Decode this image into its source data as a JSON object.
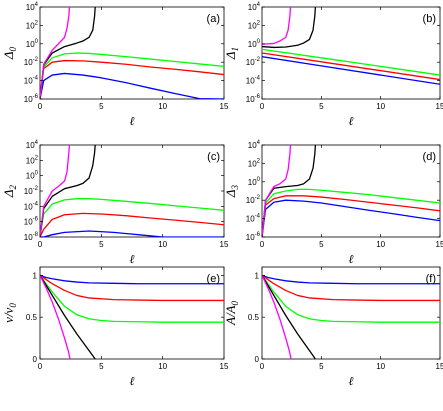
{
  "figure": {
    "xlabel": "ℓ",
    "colors": {
      "blue": "#0000ff",
      "red": "#ff0000",
      "green": "#00ff00",
      "black": "#000000",
      "magenta": "#ff00ff"
    }
  },
  "chart_data": [
    {
      "id": "a",
      "type": "line",
      "panel_label": "(a)",
      "ylabel": "Δ0",
      "ylabel_main": "Δ",
      "ylabel_sub": "0",
      "yscale": "log",
      "xlim": [
        0,
        15
      ],
      "ylim": [
        1e-06,
        10000.0
      ],
      "xticks": [
        0,
        5,
        10,
        15
      ],
      "xtick_labels": [
        "0",
        "5",
        "10",
        "15"
      ],
      "ytick_exponents": [
        -6,
        -4,
        -2,
        0,
        2,
        4
      ],
      "series": [
        {
          "color": "#0000ff",
          "x": [
            0,
            0.3,
            1,
            2,
            3.5,
            5,
            7,
            9,
            11,
            13,
            15
          ],
          "y": [
            1e-06,
            0.0001,
            0.0004,
            0.0006,
            0.0004,
            0.0002,
            6e-05,
            1.5e-05,
            4e-06,
            1.1e-06,
            3e-07
          ]
        },
        {
          "color": "#ff0000",
          "x": [
            0,
            0.3,
            1,
            2,
            3.5,
            5,
            7,
            9,
            11,
            13,
            15
          ],
          "y": [
            1e-06,
            0.002,
            0.01,
            0.015,
            0.014,
            0.01,
            0.006,
            0.003,
            0.0017,
            0.0009,
            0.00045
          ]
        },
        {
          "color": "#00ff00",
          "x": [
            0,
            0.3,
            1,
            2,
            3,
            4,
            5,
            7,
            9,
            11,
            13,
            15
          ],
          "y": [
            1e-06,
            0.003,
            0.03,
            0.08,
            0.1,
            0.09,
            0.07,
            0.04,
            0.022,
            0.012,
            0.0065,
            0.0035
          ]
        },
        {
          "color": "#000000",
          "x": [
            0,
            0.3,
            1,
            2,
            3,
            3.5,
            4,
            4.3,
            4.45,
            4.5
          ],
          "y": [
            1e-06,
            0.005,
            0.1,
            0.5,
            1.2,
            2,
            5,
            30,
            1000,
            10000
          ]
        },
        {
          "color": "#ff00ff",
          "x": [
            0,
            0.3,
            1,
            1.5,
            2,
            2.2,
            2.35,
            2.4
          ],
          "y": [
            1e-06,
            0.006,
            0.2,
            1,
            5,
            50,
            1000,
            10000
          ]
        }
      ]
    },
    {
      "id": "b",
      "type": "line",
      "panel_label": "(b)",
      "ylabel": "Δ1",
      "ylabel_main": "Δ",
      "ylabel_sub": "1",
      "yscale": "log",
      "xlim": [
        0,
        15
      ],
      "ylim": [
        1e-06,
        10000.0
      ],
      "xticks": [
        0,
        5,
        10,
        15
      ],
      "xtick_labels": [
        "0",
        "5",
        "10",
        "15"
      ],
      "ytick_exponents": [
        -6,
        -4,
        -2,
        0,
        2,
        4
      ],
      "series": [
        {
          "color": "#0000ff",
          "x": [
            0,
            5,
            10,
            15
          ],
          "y": [
            0.04,
            0.004,
            0.0004,
            4e-05
          ]
        },
        {
          "color": "#ff0000",
          "x": [
            0,
            5,
            10,
            15
          ],
          "y": [
            0.1,
            0.011,
            0.0012,
            0.00013
          ]
        },
        {
          "color": "#00ff00",
          "x": [
            0,
            5,
            10,
            15
          ],
          "y": [
            0.25,
            0.03,
            0.0035,
            0.0004
          ]
        },
        {
          "color": "#000000",
          "x": [
            0,
            1,
            2,
            3,
            3.5,
            4,
            4.3,
            4.45,
            4.5
          ],
          "y": [
            0.5,
            0.4,
            0.45,
            0.7,
            1.2,
            3,
            30,
            1000,
            10000
          ]
        },
        {
          "color": "#ff00ff",
          "x": [
            0,
            1,
            1.5,
            2,
            2.2,
            2.35,
            2.4
          ],
          "y": [
            0.9,
            1.1,
            2,
            5,
            30,
            1000,
            10000
          ]
        }
      ]
    },
    {
      "id": "c",
      "type": "line",
      "panel_label": "(c)",
      "ylabel": "Δ2",
      "ylabel_main": "Δ",
      "ylabel_sub": "2",
      "yscale": "log",
      "xlim": [
        0,
        15
      ],
      "ylim": [
        1e-08,
        10000.0
      ],
      "xticks": [
        0,
        5,
        10,
        15
      ],
      "xtick_labels": [
        "0",
        "5",
        "10",
        "15"
      ],
      "ytick_exponents": [
        -8,
        -6,
        -4,
        -2,
        0,
        2,
        4
      ],
      "series": [
        {
          "color": "#0000ff",
          "x": [
            0,
            0.3,
            1,
            2,
            4,
            6,
            8,
            10,
            12,
            14,
            15
          ],
          "y": [
            1e-08,
            1e-08,
            2e-08,
            4e-08,
            6e-08,
            4e-08,
            2e-08,
            1e-08,
            1e-08,
            1e-08,
            1e-08
          ]
        },
        {
          "color": "#ff0000",
          "x": [
            0,
            0.3,
            1,
            2,
            3.5,
            5,
            7,
            9,
            11,
            13,
            15
          ],
          "y": [
            1e-08,
            1e-07,
            2e-06,
            8e-06,
            1.2e-05,
            1e-05,
            6e-06,
            3e-06,
            1.6e-06,
            8e-07,
            4e-07
          ]
        },
        {
          "color": "#00ff00",
          "x": [
            0,
            0.3,
            1,
            2,
            3,
            4,
            5,
            7,
            9,
            11,
            13,
            15
          ],
          "y": [
            1e-08,
            1e-05,
            0.0002,
            0.0007,
            0.001,
            0.001,
            0.0008,
            0.00045,
            0.00024,
            0.00012,
            6e-05,
            3e-05
          ]
        },
        {
          "color": "#000000",
          "x": [
            0,
            0.3,
            1,
            2,
            3,
            3.5,
            4,
            4.3,
            4.45,
            4.5
          ],
          "y": [
            1e-08,
            5e-05,
            0.002,
            0.02,
            0.05,
            0.1,
            0.5,
            20,
            1000,
            10000
          ]
        },
        {
          "color": "#ff00ff",
          "x": [
            0,
            0.3,
            1,
            1.5,
            2,
            2.2,
            2.35,
            2.4
          ],
          "y": [
            1e-08,
            0.0001,
            0.01,
            0.04,
            0.2,
            3,
            1000,
            10000
          ]
        }
      ]
    },
    {
      "id": "d",
      "type": "line",
      "panel_label": "(d)",
      "ylabel": "Δ3",
      "ylabel_main": "Δ",
      "ylabel_sub": "3",
      "yscale": "log",
      "xlim": [
        0,
        15
      ],
      "ylim": [
        1e-06,
        10000.0
      ],
      "xticks": [
        0,
        5,
        10,
        15
      ],
      "xtick_labels": [
        "0",
        "5",
        "10",
        "15"
      ],
      "ytick_exponents": [
        -6,
        -4,
        -2,
        0,
        2,
        4
      ],
      "series": [
        {
          "color": "#0000ff",
          "x": [
            0,
            0.3,
            1,
            2,
            3.5,
            5,
            7,
            9,
            11,
            13,
            15
          ],
          "y": [
            1e-06,
            0.001,
            0.006,
            0.01,
            0.008,
            0.005,
            0.002,
            0.0008,
            0.00035,
            0.00014,
            6e-05
          ]
        },
        {
          "color": "#ff0000",
          "x": [
            0,
            0.3,
            1,
            2,
            3.5,
            5,
            7,
            9,
            11,
            13,
            15
          ],
          "y": [
            1e-06,
            0.003,
            0.015,
            0.03,
            0.03,
            0.022,
            0.012,
            0.006,
            0.003,
            0.0015,
            0.0007
          ]
        },
        {
          "color": "#00ff00",
          "x": [
            0,
            0.3,
            1,
            2,
            3,
            4,
            5,
            7,
            9,
            11,
            13,
            15
          ],
          "y": [
            1e-06,
            0.005,
            0.05,
            0.1,
            0.15,
            0.15,
            0.12,
            0.07,
            0.04,
            0.02,
            0.01,
            0.005
          ]
        },
        {
          "color": "#000000",
          "x": [
            0,
            0.3,
            1,
            2,
            3,
            3.5,
            4,
            4.3,
            4.45,
            4.5
          ],
          "y": [
            1e-06,
            0.01,
            0.2,
            0.3,
            0.4,
            0.6,
            2,
            30,
            1000,
            10000
          ]
        },
        {
          "color": "#ff00ff",
          "x": [
            0,
            0.3,
            1,
            1.5,
            2,
            2.2,
            2.35,
            2.4
          ],
          "y": [
            1e-06,
            0.01,
            0.3,
            0.6,
            2,
            20,
            1000,
            10000
          ]
        }
      ]
    },
    {
      "id": "e",
      "type": "line",
      "panel_label": "(e)",
      "ylabel": "v/v0",
      "ylabel_main": "v/v",
      "ylabel_sub": "0",
      "yscale": "linear",
      "xlim": [
        0,
        15
      ],
      "ylim": [
        0,
        1.1
      ],
      "xticks": [
        0,
        5,
        10,
        15
      ],
      "xtick_labels": [
        "0",
        "5",
        "10",
        "15"
      ],
      "yticks": [
        0,
        0.5,
        1
      ],
      "ytick_labels": [
        "0",
        "0.5",
        "1"
      ],
      "series": [
        {
          "color": "#0000ff",
          "x": [
            0,
            0.5,
            1,
            2,
            3,
            4,
            6,
            8,
            10,
            12,
            15
          ],
          "y": [
            1,
            0.975,
            0.96,
            0.935,
            0.92,
            0.91,
            0.905,
            0.9,
            0.9,
            0.9,
            0.9
          ]
        },
        {
          "color": "#ff0000",
          "x": [
            0,
            0.5,
            1,
            2,
            3,
            4,
            6,
            8,
            10,
            12,
            15
          ],
          "y": [
            1,
            0.95,
            0.9,
            0.82,
            0.76,
            0.73,
            0.71,
            0.705,
            0.7,
            0.7,
            0.7
          ]
        },
        {
          "color": "#00ff00",
          "x": [
            0,
            0.5,
            1,
            2,
            3,
            4,
            5,
            6,
            8,
            10,
            15
          ],
          "y": [
            1,
            0.9,
            0.8,
            0.63,
            0.53,
            0.48,
            0.46,
            0.45,
            0.445,
            0.44,
            0.44
          ]
        },
        {
          "color": "#000000",
          "x": [
            0,
            0.5,
            1,
            2,
            3,
            3.5,
            4,
            4.3,
            4.5
          ],
          "y": [
            1,
            0.88,
            0.76,
            0.52,
            0.3,
            0.2,
            0.1,
            0.04,
            0
          ]
        },
        {
          "color": "#ff00ff",
          "x": [
            0,
            0.5,
            1,
            1.5,
            2,
            2.3,
            2.45
          ],
          "y": [
            1,
            0.85,
            0.68,
            0.48,
            0.25,
            0.1,
            0
          ]
        }
      ]
    },
    {
      "id": "f",
      "type": "line",
      "panel_label": "(f)",
      "ylabel": "A/A0",
      "ylabel_main": "A/A",
      "ylabel_sub": "0",
      "yscale": "linear",
      "xlim": [
        0,
        15
      ],
      "ylim": [
        0,
        1.1
      ],
      "xticks": [
        0,
        5,
        10,
        15
      ],
      "xtick_labels": [
        "0",
        "5",
        "10",
        "15"
      ],
      "yticks": [
        0,
        0.5,
        1
      ],
      "ytick_labels": [
        "0",
        "0.5",
        "1"
      ],
      "series": [
        {
          "color": "#0000ff",
          "x": [
            0,
            0.5,
            1,
            2,
            3,
            4,
            6,
            8,
            10,
            12,
            15
          ],
          "y": [
            1,
            0.975,
            0.96,
            0.935,
            0.92,
            0.91,
            0.905,
            0.9,
            0.9,
            0.9,
            0.9
          ]
        },
        {
          "color": "#ff0000",
          "x": [
            0,
            0.5,
            1,
            2,
            3,
            4,
            6,
            8,
            10,
            12,
            15
          ],
          "y": [
            1,
            0.95,
            0.9,
            0.82,
            0.76,
            0.73,
            0.71,
            0.705,
            0.7,
            0.7,
            0.7
          ]
        },
        {
          "color": "#00ff00",
          "x": [
            0,
            0.5,
            1,
            2,
            3,
            4,
            5,
            6,
            8,
            10,
            15
          ],
          "y": [
            1,
            0.9,
            0.8,
            0.63,
            0.53,
            0.48,
            0.46,
            0.45,
            0.445,
            0.44,
            0.44
          ]
        },
        {
          "color": "#000000",
          "x": [
            0,
            0.5,
            1,
            2,
            3,
            3.5,
            4,
            4.3,
            4.5
          ],
          "y": [
            1,
            0.88,
            0.76,
            0.52,
            0.3,
            0.2,
            0.1,
            0.04,
            0
          ]
        },
        {
          "color": "#ff00ff",
          "x": [
            0,
            0.5,
            1,
            1.5,
            2,
            2.3,
            2.45
          ],
          "y": [
            1,
            0.85,
            0.68,
            0.48,
            0.25,
            0.1,
            0
          ]
        }
      ]
    }
  ]
}
